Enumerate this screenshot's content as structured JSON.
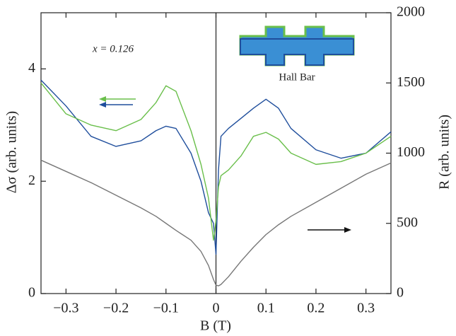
{
  "chart_data": {
    "type": "line",
    "annotation": "x = 0.126",
    "inset_label": "Hall Bar",
    "xlabel": "B (T)",
    "ylabel": "Δσ (arb. units)",
    "y2label": "R (arb. units)",
    "xlim": [
      -0.35,
      0.35
    ],
    "xticks": [
      {
        "value": -0.3,
        "label": "−0.3"
      },
      {
        "value": -0.2,
        "label": "−0.2"
      },
      {
        "value": -0.1,
        "label": "−0.1"
      },
      0,
      0.1,
      0.2,
      0.3
    ],
    "ylim": [
      0,
      5
    ],
    "yticks": [
      0,
      2,
      4
    ],
    "y2lim": [
      0,
      2000
    ],
    "y2ticks": [
      0,
      500,
      1000,
      1500,
      2000
    ],
    "x": [
      -0.35,
      -0.3,
      -0.25,
      -0.2,
      -0.15,
      -0.12,
      -0.1,
      -0.08,
      -0.05,
      -0.03,
      -0.015,
      -0.005,
      0,
      0.005,
      0.01,
      0.025,
      0.05,
      0.075,
      0.1,
      0.125,
      0.15,
      0.2,
      0.25,
      0.3,
      0.35
    ],
    "series": [
      {
        "color": "#1f4e9c",
        "values": [
          3.8,
          3.34,
          2.8,
          2.62,
          2.72,
          2.9,
          2.98,
          2.94,
          2.5,
          2.0,
          1.44,
          1.25,
          0.7,
          2.2,
          2.8,
          2.94,
          3.12,
          3.3,
          3.46,
          3.3,
          2.94,
          2.56,
          2.41,
          2.5,
          2.88
        ]
      },
      {
        "color": "#6abf4b",
        "values": [
          3.75,
          3.2,
          3.0,
          2.9,
          3.1,
          3.4,
          3.7,
          3.6,
          2.9,
          2.3,
          1.7,
          0.95,
          1.3,
          1.9,
          2.1,
          2.2,
          2.45,
          2.8,
          2.87,
          2.75,
          2.5,
          2.3,
          2.35,
          2.5,
          2.8
        ]
      },
      {
        "color": "#777777",
        "axis": "y2",
        "values": [
          950,
          870,
          790,
          700,
          610,
          550,
          500,
          450,
          380,
          300,
          200,
          100,
          60,
          55,
          65,
          120,
          230,
          330,
          420,
          490,
          550,
          650,
          750,
          850,
          930
        ]
      }
    ]
  }
}
